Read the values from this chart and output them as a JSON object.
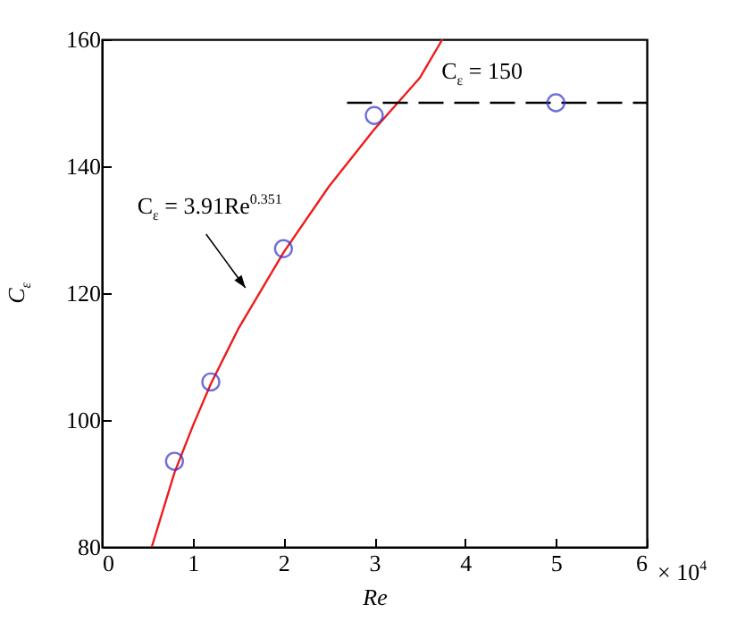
{
  "chart_data": {
    "type": "scatter",
    "xlabel": "Re",
    "ylabel": "C$_{ε}$",
    "xlim": [
      0,
      6
    ],
    "ylim": [
      80,
      160
    ],
    "xticks": [
      0,
      1,
      2,
      3,
      4,
      5,
      6
    ],
    "yticks": [
      80,
      100,
      120,
      140,
      160
    ],
    "grid": false,
    "series": [
      {
        "type": "line",
        "color": "#ee1c1c",
        "marker": "none",
        "line_style": "solid",
        "x": [
          0.55,
          0.8,
          1,
          1.2,
          1.5,
          2,
          2.5,
          3,
          3.5,
          3.75
        ],
        "values": [
          80,
          91.7,
          99,
          105.7,
          114.3,
          126.4,
          136.8,
          145.8,
          153.9,
          160
        ]
      },
      {
        "type": "line",
        "color": "#000000",
        "marker": "none",
        "line_style": "dashed",
        "x": [
          2.7,
          6
        ],
        "values": [
          150,
          150
        ]
      },
      {
        "color": "#3333cc",
        "marker": "circle",
        "x": [
          0.8,
          1.2,
          2,
          3,
          5
        ],
        "values": [
          93.5,
          106,
          127,
          148,
          150
        ]
      }
    ],
    "annotations": [
      {
        "text": "C$_{ε}$ = 3.91Re$^{0.351}$",
        "x": 1.62,
        "y": 120
      },
      {
        "text": "C$_{ε}$ = 150",
        "x": 3.75,
        "y": 150
      },
      "× 10$^{4}$"
    ]
  }
}
